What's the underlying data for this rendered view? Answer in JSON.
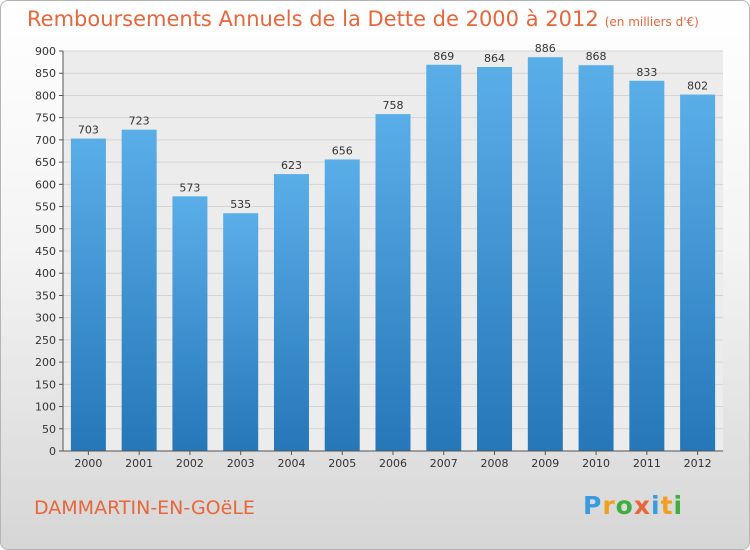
{
  "header": {
    "title": "Remboursements Annuels de la Dette de 2000 à 2012",
    "unit": "(en milliers d'€)"
  },
  "footer": {
    "city": "DAMMARTIN-EN-GOëLE",
    "logo": [
      "P",
      "r",
      "o",
      "x",
      "i",
      "t",
      "i"
    ],
    "logo_colors": [
      "#3a9be0",
      "#f0a020",
      "#3fae3f",
      "#e8663a",
      "#3a9be0",
      "#f0a020",
      "#3fae3f"
    ]
  },
  "colors": {
    "bar_top": "#5aaee8",
    "bar_bottom": "#2577b8",
    "grid": "#d4d4d4",
    "axis": "#555555",
    "text": "#333333"
  },
  "chart_data": {
    "type": "bar",
    "title": "Remboursements Annuels de la Dette de 2000 à 2012",
    "categories": [
      "2000",
      "2001",
      "2002",
      "2003",
      "2004",
      "2005",
      "2006",
      "2007",
      "2008",
      "2009",
      "2010",
      "2011",
      "2012"
    ],
    "values": [
      703,
      723,
      573,
      535,
      623,
      656,
      758,
      869,
      864,
      886,
      868,
      833,
      802
    ],
    "ylim": [
      0,
      900
    ],
    "yticks": [
      0,
      50,
      100,
      150,
      200,
      250,
      300,
      350,
      400,
      450,
      500,
      550,
      600,
      650,
      700,
      750,
      800,
      850,
      900
    ],
    "grid": true,
    "legend": "none"
  }
}
